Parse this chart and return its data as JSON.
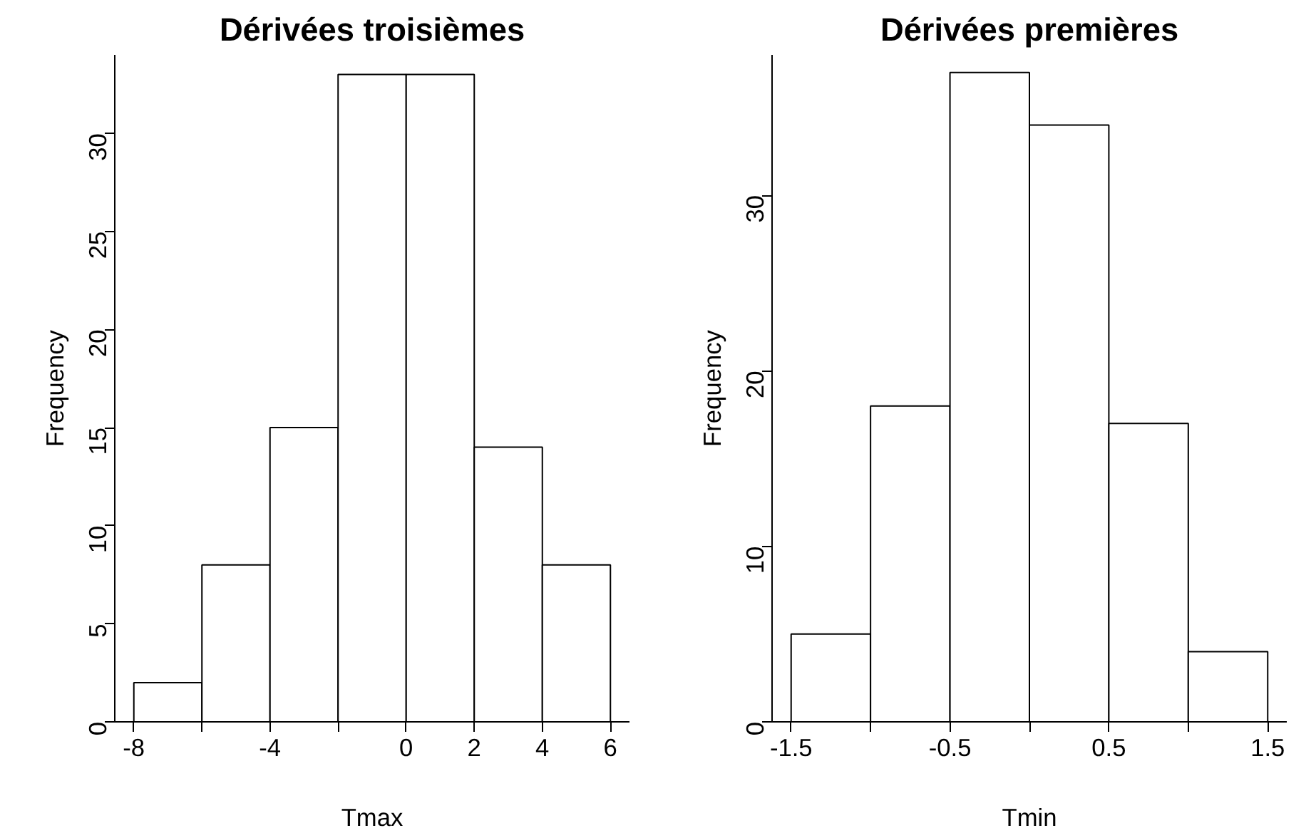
{
  "chart_data": [
    {
      "type": "histogram",
      "title": "Dérivées troisièmes",
      "xlabel": "Tmax",
      "ylabel": "Frequency",
      "bins": [
        -8,
        -6,
        -4,
        -2,
        0,
        2,
        4,
        6
      ],
      "values": [
        2,
        8,
        15,
        33,
        33,
        14,
        8
      ],
      "color": "#ffffff",
      "xlim": [
        -8.56,
        6.56
      ],
      "ylim": [
        0,
        34
      ],
      "xticks": [
        -8,
        {
          "value": -6,
          "label": null
        },
        -4,
        {
          "value": -2,
          "label": null
        },
        0,
        2,
        4,
        6
      ],
      "yticks": [
        0,
        5,
        10,
        15,
        20,
        25,
        30
      ]
    },
    {
      "type": "histogram",
      "title": "Dérivées premières",
      "xlabel": "Tmin",
      "ylabel": "Frequency",
      "bins": [
        -1.5,
        -1.0,
        -0.5,
        0.0,
        0.5,
        1.0,
        1.5
      ],
      "values": [
        5,
        18,
        37,
        34,
        17,
        4
      ],
      "color": "#ffffff",
      "xlim": [
        -1.62,
        1.62
      ],
      "ylim": [
        0,
        38
      ],
      "xticks": [
        -1.5,
        {
          "value": -1.0,
          "label": null
        },
        -0.5,
        {
          "value": 0.0,
          "label": null
        },
        0.5,
        {
          "value": 1.0,
          "label": null
        },
        1.5
      ],
      "yticks": [
        0,
        10,
        20,
        30
      ]
    }
  ]
}
